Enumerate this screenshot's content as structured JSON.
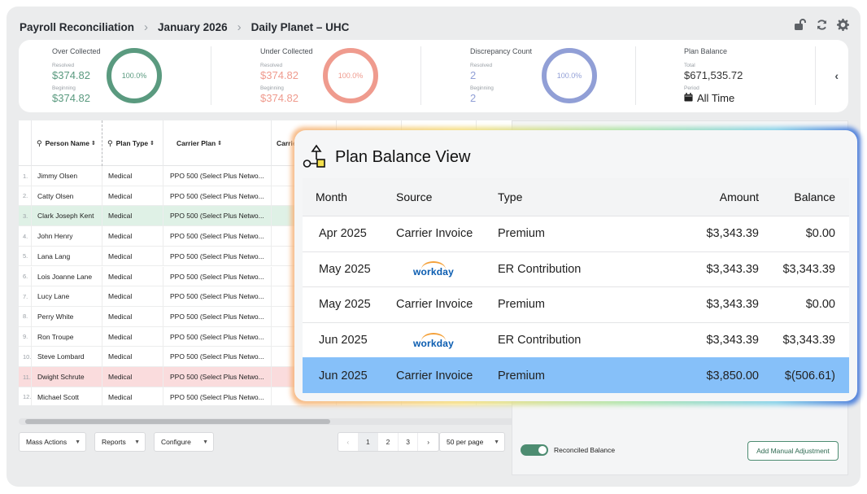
{
  "breadcrumb": [
    "Payroll Reconciliation",
    "January 2026",
    "Daily Planet – UHC"
  ],
  "header_icons": [
    "unlock-icon",
    "refresh-icon",
    "gear-icon"
  ],
  "stats": {
    "over_collected": {
      "title": "Over Collected",
      "resolved_label": "Resolved",
      "resolved": "$374.82",
      "beginning_label": "Beginning",
      "beginning": "$374.82",
      "percent": "100.0%",
      "color": "#5a9a7f"
    },
    "under_collected": {
      "title": "Under Collected",
      "resolved_label": "Resolved",
      "resolved": "$374.82",
      "beginning_label": "Beginning",
      "beginning": "$374.82",
      "percent": "100.0%",
      "color": "#ef9b8e"
    },
    "discrepancy": {
      "title": "Discrepancy Count",
      "resolved_label": "Resolved",
      "resolved": "2",
      "beginning_label": "Beginning",
      "beginning": "2",
      "percent": "100.0%",
      "color": "#919fd6"
    },
    "plan_balance": {
      "title": "Plan Balance",
      "total_label": "Total",
      "total": "$671,535.72",
      "period_label": "Period",
      "period": "All Time"
    }
  },
  "table": {
    "headers": {
      "person": "Person Name",
      "plan_type": "Plan Type",
      "carrier_plan": "Carrier Plan",
      "carrier": "Carrie"
    },
    "rows": [
      {
        "n": "1.",
        "name": "Jimmy Olsen",
        "type": "Medical",
        "plan": "PPO 500 (Select Plus Netwo..."
      },
      {
        "n": "2.",
        "name": "Catty Olsen",
        "type": "Medical",
        "plan": "PPO 500 (Select Plus Netwo..."
      },
      {
        "n": "3.",
        "name": "Clark Joseph Kent",
        "type": "Medical",
        "plan": "PPO 500 (Select Plus Netwo..."
      },
      {
        "n": "4.",
        "name": "John Henry",
        "type": "Medical",
        "plan": "PPO 500 (Select Plus Netwo..."
      },
      {
        "n": "5.",
        "name": "Lana Lang",
        "type": "Medical",
        "plan": "PPO 500 (Select Plus Netwo..."
      },
      {
        "n": "6.",
        "name": "Lois Joanne Lane",
        "type": "Medical",
        "plan": "PPO 500 (Select Plus Netwo..."
      },
      {
        "n": "7.",
        "name": "Lucy Lane",
        "type": "Medical",
        "plan": "PPO 500 (Select Plus Netwo..."
      },
      {
        "n": "8.",
        "name": "Perry White",
        "type": "Medical",
        "plan": "PPO 500 (Select Plus Netwo..."
      },
      {
        "n": "9.",
        "name": "Ron Troupe",
        "type": "Medical",
        "plan": "PPO 500 (Select Plus Netwo..."
      },
      {
        "n": "10.",
        "name": "Steve Lombard",
        "type": "Medical",
        "plan": "PPO 500 (Select Plus Netwo..."
      },
      {
        "n": "11.",
        "name": "Dwight Schrute",
        "type": "Medical",
        "plan": "PPO 500 (Select Plus Netwo..."
      },
      {
        "n": "12.",
        "name": "Michael Scott",
        "type": "Medical",
        "plan": "PPO 500 (Select Plus Netwo..."
      }
    ]
  },
  "toolbar": {
    "mass_actions": "Mass Actions",
    "reports": "Reports",
    "configure": "Configure",
    "per_page": "50 per page"
  },
  "pager": {
    "prev": "‹",
    "pages": [
      "1",
      "2",
      "3"
    ],
    "next": "›"
  },
  "right_panel": {
    "reconciled_label": "Reconciled Balance",
    "add_adjustment": "Add Manual Adjustment"
  },
  "popup": {
    "title": "Plan Balance View",
    "headers": {
      "month": "Month",
      "source": "Source",
      "type": "Type",
      "amount": "Amount",
      "balance": "Balance"
    },
    "rows": [
      {
        "month": "Apr 2025",
        "source": "Carrier Invoice",
        "type": "Premium",
        "amount": "$3,343.39",
        "balance": "$0.00"
      },
      {
        "month": "May 2025",
        "source": "workday",
        "type": "ER Contribution",
        "amount": "$3,343.39",
        "balance": "$3,343.39"
      },
      {
        "month": "May 2025",
        "source": "Carrier Invoice",
        "type": "Premium",
        "amount": "$3,343.39",
        "balance": "$0.00"
      },
      {
        "month": "Jun 2025",
        "source": "workday",
        "type": "ER Contribution",
        "amount": "$3,343.39",
        "balance": "$3,343.39"
      },
      {
        "month": "Jun 2025",
        "source": "Carrier Invoice",
        "type": "Premium",
        "amount": "$3,850.00",
        "balance": "$(506.61)"
      }
    ]
  }
}
